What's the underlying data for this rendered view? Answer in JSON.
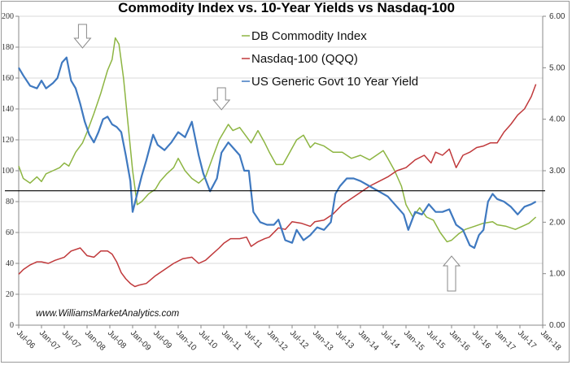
{
  "chart_data": {
    "type": "line",
    "title": "Commodity Index vs. 10-Year Yields vs Nasdaq-100",
    "xlabel": "",
    "ylabel_left": "",
    "ylabel_right": "",
    "ylim_left": [
      0,
      200
    ],
    "ylim_right": [
      0.0,
      6.0
    ],
    "yticks_left": [
      "0",
      "20",
      "40",
      "60",
      "80",
      "100",
      "120",
      "140",
      "160",
      "180",
      "200"
    ],
    "yticks_right": [
      "0.00",
      "1.00",
      "2.00",
      "3.00",
      "4.00",
      "5.00",
      "6.00"
    ],
    "x_tick_labels": [
      "Jul-06",
      "Jan-07",
      "Jul-07",
      "Jan-08",
      "Jul-08",
      "Jan-09",
      "Jul-09",
      "Jan-10",
      "Jul-10",
      "Jan-11",
      "Jul-11",
      "Jan-12",
      "Jul-12",
      "Jan-13",
      "Jul-13",
      "Jan-14",
      "Jul-14",
      "Jan-15",
      "Jul-15",
      "Jan-16",
      "Jul-16",
      "Jan-17",
      "Jul-17",
      "Jan-18"
    ],
    "x_range": [
      2006.5,
      2018.0
    ],
    "grid": "horizontal",
    "legend_position": "top-center",
    "reference_line": {
      "axis": "left",
      "value": 87,
      "right_axis_equivalent": 2.6,
      "color": "#000000"
    },
    "annotations": [
      {
        "type": "down-arrow",
        "x": 2007.9,
        "label": ""
      },
      {
        "type": "down-arrow",
        "x": 2010.95,
        "label": ""
      },
      {
        "type": "up-arrow",
        "x": 2016.0,
        "label": ""
      }
    ],
    "watermark": "www.WilliamsMarketAnalytics.com",
    "series": [
      {
        "name": "DB Commodity Index",
        "axis": "left",
        "color": "#8db542",
        "x": [
          2006.5,
          2006.6,
          2006.75,
          2006.9,
          2007.0,
          2007.1,
          2007.25,
          2007.4,
          2007.5,
          2007.6,
          2007.75,
          2007.9,
          2008.0,
          2008.15,
          2008.3,
          2008.45,
          2008.55,
          2008.62,
          2008.7,
          2008.8,
          2008.9,
          2009.0,
          2009.1,
          2009.2,
          2009.35,
          2009.5,
          2009.6,
          2009.75,
          2009.9,
          2010.0,
          2010.15,
          2010.3,
          2010.45,
          2010.6,
          2010.75,
          2010.9,
          2011.0,
          2011.1,
          2011.2,
          2011.35,
          2011.5,
          2011.6,
          2011.75,
          2011.9,
          2012.0,
          2012.15,
          2012.3,
          2012.45,
          2012.6,
          2012.75,
          2012.9,
          2013.0,
          2013.2,
          2013.4,
          2013.6,
          2013.8,
          2014.0,
          2014.2,
          2014.4,
          2014.5,
          2014.6,
          2014.75,
          2014.9,
          2015.0,
          2015.15,
          2015.3,
          2015.45,
          2015.6,
          2015.75,
          2015.9,
          2016.0,
          2016.15,
          2016.3,
          2016.5,
          2016.7,
          2016.9,
          2017.0,
          2017.2,
          2017.4,
          2017.55,
          2017.7,
          2017.85
        ],
        "values": [
          103,
          95,
          92,
          96,
          93,
          98,
          100,
          102,
          105,
          103,
          112,
          118,
          125,
          137,
          150,
          165,
          172,
          186,
          182,
          160,
          130,
          100,
          78,
          80,
          85,
          88,
          93,
          98,
          102,
          108,
          100,
          95,
          92,
          96,
          108,
          120,
          125,
          130,
          126,
          128,
          122,
          118,
          126,
          118,
          112,
          104,
          104,
          112,
          120,
          123,
          115,
          118,
          116,
          112,
          112,
          108,
          110,
          107,
          111,
          113,
          108,
          100,
          90,
          78,
          70,
          76,
          70,
          68,
          60,
          54,
          55,
          59,
          62,
          64,
          66,
          67,
          65,
          64,
          62,
          64,
          66,
          70
        ]
      },
      {
        "name": "Nasdaq-100 (QQQ)",
        "axis": "left",
        "color": "#c0393b",
        "x": [
          2006.5,
          2006.6,
          2006.75,
          2006.9,
          2007.0,
          2007.15,
          2007.3,
          2007.5,
          2007.65,
          2007.85,
          2008.0,
          2008.15,
          2008.3,
          2008.45,
          2008.55,
          2008.65,
          2008.75,
          2008.85,
          2008.95,
          2009.05,
          2009.15,
          2009.3,
          2009.5,
          2009.7,
          2009.9,
          2010.1,
          2010.3,
          2010.45,
          2010.6,
          2010.75,
          2010.9,
          2011.0,
          2011.15,
          2011.35,
          2011.5,
          2011.6,
          2011.75,
          2011.9,
          2012.0,
          2012.2,
          2012.35,
          2012.5,
          2012.7,
          2012.9,
          2013.0,
          2013.2,
          2013.4,
          2013.6,
          2013.8,
          2014.0,
          2014.2,
          2014.4,
          2014.6,
          2014.8,
          2015.0,
          2015.2,
          2015.4,
          2015.55,
          2015.65,
          2015.8,
          2015.95,
          2016.1,
          2016.25,
          2016.4,
          2016.55,
          2016.7,
          2016.85,
          2017.0,
          2017.15,
          2017.3,
          2017.45,
          2017.6,
          2017.75,
          2017.85
        ],
        "values": [
          33,
          36,
          39,
          41,
          41,
          40,
          42,
          44,
          48,
          50,
          45,
          44,
          48,
          48,
          46,
          41,
          34,
          30,
          27,
          25,
          26,
          27,
          32,
          36,
          40,
          43,
          44,
          40,
          42,
          46,
          50,
          53,
          56,
          56,
          57,
          51,
          54,
          56,
          57,
          63,
          62,
          67,
          66,
          64,
          67,
          68,
          72,
          78,
          82,
          86,
          90,
          93,
          96,
          100,
          102,
          107,
          110,
          105,
          112,
          110,
          114,
          102,
          110,
          112,
          115,
          116,
          118,
          118,
          125,
          130,
          136,
          140,
          148,
          156
        ]
      },
      {
        "name": "US Generic Govt 10 Year Yield",
        "axis": "right",
        "color": "#3f79c0",
        "x": [
          2006.5,
          2006.6,
          2006.75,
          2006.9,
          2007.0,
          2007.1,
          2007.25,
          2007.35,
          2007.45,
          2007.55,
          2007.65,
          2007.75,
          2007.85,
          2007.95,
          2008.05,
          2008.15,
          2008.25,
          2008.35,
          2008.45,
          2008.55,
          2008.65,
          2008.75,
          2008.85,
          2008.95,
          2009.0,
          2009.1,
          2009.2,
          2009.3,
          2009.45,
          2009.55,
          2009.7,
          2009.85,
          2010.0,
          2010.15,
          2010.3,
          2010.45,
          2010.55,
          2010.7,
          2010.85,
          2010.95,
          2011.1,
          2011.2,
          2011.35,
          2011.45,
          2011.55,
          2011.65,
          2011.8,
          2011.95,
          2012.1,
          2012.2,
          2012.35,
          2012.5,
          2012.6,
          2012.75,
          2012.9,
          2013.05,
          2013.2,
          2013.35,
          2013.45,
          2013.55,
          2013.7,
          2013.85,
          2014.0,
          2014.2,
          2014.4,
          2014.6,
          2014.8,
          2014.95,
          2015.05,
          2015.2,
          2015.35,
          2015.5,
          2015.65,
          2015.8,
          2015.95,
          2016.1,
          2016.25,
          2016.4,
          2016.5,
          2016.6,
          2016.7,
          2016.8,
          2016.9,
          2017.0,
          2017.15,
          2017.3,
          2017.45,
          2017.6,
          2017.75,
          2017.85
        ],
        "values": [
          5.0,
          4.85,
          4.65,
          4.6,
          4.75,
          4.6,
          4.7,
          4.8,
          5.1,
          5.2,
          4.75,
          4.6,
          4.3,
          3.95,
          3.7,
          3.55,
          3.75,
          4.0,
          4.05,
          3.9,
          3.85,
          3.75,
          3.3,
          2.8,
          2.2,
          2.55,
          2.9,
          3.2,
          3.7,
          3.5,
          3.4,
          3.55,
          3.75,
          3.65,
          3.95,
          3.3,
          2.95,
          2.6,
          2.85,
          3.35,
          3.55,
          3.45,
          3.3,
          3.0,
          3.0,
          2.2,
          2.0,
          1.95,
          1.95,
          2.05,
          1.65,
          1.6,
          1.85,
          1.65,
          1.75,
          1.9,
          1.85,
          2.0,
          2.55,
          2.7,
          2.85,
          2.85,
          2.8,
          2.7,
          2.6,
          2.5,
          2.3,
          2.15,
          1.85,
          2.2,
          2.15,
          2.35,
          2.2,
          2.2,
          2.25,
          1.95,
          1.85,
          1.55,
          1.5,
          1.75,
          1.85,
          2.4,
          2.55,
          2.45,
          2.4,
          2.3,
          2.15,
          2.3,
          2.35,
          2.4
        ]
      }
    ]
  }
}
